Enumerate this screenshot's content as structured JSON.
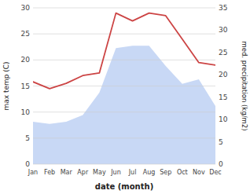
{
  "chart_data": {
    "type": "line",
    "xlabel": "date (month)",
    "ylabel": "max temp (C)",
    "y2label": "med. precipitation (kg/m2)",
    "categories": [
      "Jan",
      "Feb",
      "Mar",
      "Apr",
      "May",
      "Jun",
      "Jul",
      "Aug",
      "Sep",
      "Oct",
      "Nov",
      "Dec"
    ],
    "series": [
      {
        "type": "area",
        "axis": "y2",
        "color": "#c8d8f5",
        "values": [
          9.5,
          9.0,
          9.5,
          11.0,
          16.0,
          26.0,
          26.5,
          26.5,
          22.0,
          18.0,
          19.0,
          13.0
        ]
      },
      {
        "type": "line",
        "color": "#cc4444",
        "values": [
          15.8,
          14.5,
          15.5,
          17.0,
          17.5,
          29.0,
          27.5,
          29.0,
          28.5,
          24.0,
          19.5,
          19.0
        ]
      }
    ],
    "ylim": [
      0,
      30
    ],
    "yticks": [
      0,
      5,
      10,
      15,
      20,
      25,
      30
    ],
    "y2lim": [
      0,
      35
    ],
    "y2ticks": [
      0,
      5,
      10,
      15,
      20,
      25,
      30,
      35
    ],
    "grid": true
  }
}
